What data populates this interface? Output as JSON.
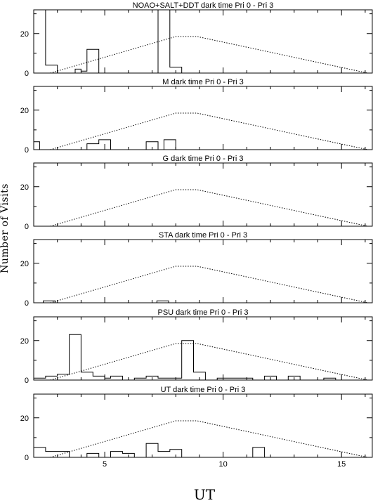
{
  "chart_data": {
    "type": "bar",
    "layout": "six vertically stacked histogram panels with shared x axis",
    "xlabel": "UT",
    "ylabel": "Number of Visits",
    "xlim": [
      2,
      16.3
    ],
    "ylim": [
      0,
      32
    ],
    "xticks_major": [
      5,
      10,
      15
    ],
    "xticks_minor_step": 1,
    "yticks": [
      0,
      20
    ],
    "bin_width": 0.5,
    "reference_curve": {
      "style": "dotted",
      "x": [
        2.7,
        8.0,
        8.9,
        16.1
      ],
      "y": [
        0,
        18.5,
        18.5,
        0
      ]
    },
    "panels": [
      {
        "title": "NOAO+SALT+DDT dark time Pri 0 - Pri 3",
        "bins": [
          [
            2.0,
            32
          ],
          [
            2.5,
            4
          ],
          [
            3.0,
            0
          ],
          [
            3.5,
            0
          ],
          [
            3.75,
            2
          ],
          [
            4.0,
            1
          ],
          [
            4.25,
            12
          ],
          [
            4.75,
            0
          ],
          [
            7.25,
            32
          ],
          [
            7.75,
            3
          ],
          [
            8.25,
            0
          ]
        ]
      },
      {
        "title": "M    dark time Pri 0 - Pri 3",
        "bins": [
          [
            2.0,
            4
          ],
          [
            2.25,
            0
          ],
          [
            4.25,
            3
          ],
          [
            4.75,
            5
          ],
          [
            5.25,
            0
          ],
          [
            6.75,
            4
          ],
          [
            7.25,
            0
          ],
          [
            7.5,
            5
          ],
          [
            8.0,
            0
          ]
        ]
      },
      {
        "title": "G    dark time Pri 0 - Pri 3",
        "bins": []
      },
      {
        "title": "STA    dark time Pri 0 - Pri 3",
        "bins": [
          [
            2.4,
            1
          ],
          [
            2.9,
            0
          ],
          [
            7.2,
            1
          ],
          [
            7.7,
            0
          ]
        ]
      },
      {
        "title": "PSU    dark time Pri 0 - Pri 3",
        "bins": [
          [
            2.0,
            1
          ],
          [
            2.5,
            2
          ],
          [
            3.0,
            3
          ],
          [
            3.5,
            23
          ],
          [
            4.0,
            4
          ],
          [
            4.5,
            2
          ],
          [
            5.0,
            1
          ],
          [
            5.25,
            2
          ],
          [
            5.75,
            0
          ],
          [
            6.25,
            1
          ],
          [
            6.75,
            2
          ],
          [
            7.25,
            1
          ],
          [
            8.25,
            20
          ],
          [
            8.75,
            4
          ],
          [
            9.25,
            0
          ],
          [
            9.75,
            1
          ],
          [
            10.0,
            1
          ],
          [
            11.25,
            0
          ],
          [
            11.75,
            2
          ],
          [
            12.25,
            0
          ],
          [
            12.75,
            2
          ],
          [
            13.25,
            0
          ],
          [
            14.25,
            1
          ],
          [
            14.75,
            0
          ]
        ]
      },
      {
        "title": "UT    dark time Pri 0 - Pri 3",
        "bins": [
          [
            2.0,
            5
          ],
          [
            2.5,
            3
          ],
          [
            3.0,
            3
          ],
          [
            3.5,
            0
          ],
          [
            4.25,
            2
          ],
          [
            4.75,
            0
          ],
          [
            5.25,
            3
          ],
          [
            5.75,
            2
          ],
          [
            6.25,
            0
          ],
          [
            6.75,
            7
          ],
          [
            7.25,
            3
          ],
          [
            7.75,
            4
          ],
          [
            8.25,
            0
          ],
          [
            11.25,
            5
          ],
          [
            11.75,
            0
          ]
        ]
      }
    ],
    "grid": false,
    "legend": "none"
  }
}
